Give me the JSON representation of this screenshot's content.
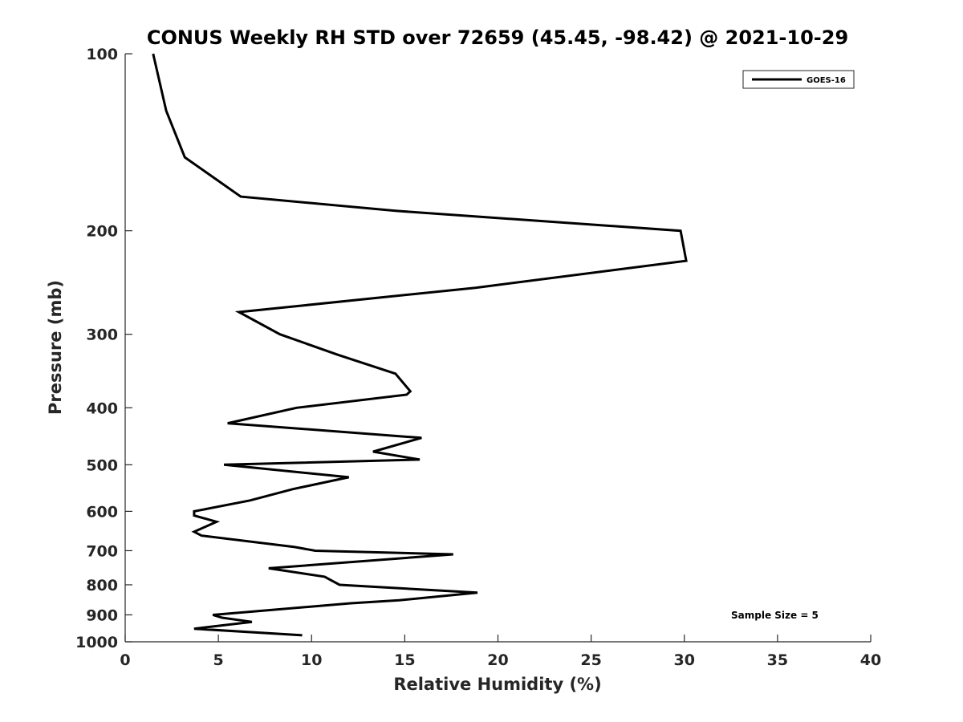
{
  "chart_data": {
    "type": "line",
    "title": "CONUS Weekly RH STD over 72659 (45.45, -98.42) @ 2021-10-29",
    "xlabel": "Relative Humidity (%)",
    "ylabel": "Pressure (mb)",
    "xlim": [
      0,
      40
    ],
    "ylim": [
      100,
      1000
    ],
    "yscale": "log",
    "y_reversed": true,
    "xticks": [
      0,
      5,
      10,
      15,
      20,
      25,
      30,
      35,
      40
    ],
    "xtick_labels": [
      "0",
      "5",
      "10",
      "15",
      "20",
      "25",
      "30",
      "35",
      "40"
    ],
    "yticks": [
      100,
      200,
      300,
      400,
      500,
      600,
      700,
      800,
      900,
      1000
    ],
    "ytick_labels": [
      "100",
      "200",
      "300",
      "400",
      "500",
      "600",
      "700",
      "800",
      "900",
      "1000"
    ],
    "grid": false,
    "legend_position": "top-right",
    "annotation": "Sample Size = 5",
    "series": [
      {
        "name": "GOES-16",
        "color": "#000000",
        "points": [
          [
            1.5,
            100
          ],
          [
            2.2,
            125
          ],
          [
            3.2,
            150
          ],
          [
            6.2,
            175
          ],
          [
            14.5,
            185
          ],
          [
            29.8,
            200
          ],
          [
            30.1,
            225
          ],
          [
            18.8,
            250
          ],
          [
            6.1,
            275
          ],
          [
            8.3,
            300
          ],
          [
            11.4,
            325
          ],
          [
            14.5,
            350
          ],
          [
            15.3,
            375
          ],
          [
            15.1,
            380
          ],
          [
            9.2,
            400
          ],
          [
            5.5,
            425
          ],
          [
            15.9,
            450
          ],
          [
            13.3,
            475
          ],
          [
            15.8,
            490
          ],
          [
            5.3,
            500
          ],
          [
            12.0,
            525
          ],
          [
            9.0,
            550
          ],
          [
            6.7,
            575
          ],
          [
            3.7,
            600
          ],
          [
            3.7,
            610
          ],
          [
            4.9,
            625
          ],
          [
            3.7,
            650
          ],
          [
            4.1,
            660
          ],
          [
            9.1,
            690
          ],
          [
            10.2,
            700
          ],
          [
            17.6,
            710
          ],
          [
            7.7,
            750
          ],
          [
            10.7,
            775
          ],
          [
            11.5,
            800
          ],
          [
            18.9,
            825
          ],
          [
            14.7,
            850
          ],
          [
            12.1,
            860
          ],
          [
            4.7,
            900
          ],
          [
            5.2,
            910
          ],
          [
            6.8,
            925
          ],
          [
            3.7,
            950
          ],
          [
            9.5,
            975
          ]
        ]
      }
    ]
  }
}
